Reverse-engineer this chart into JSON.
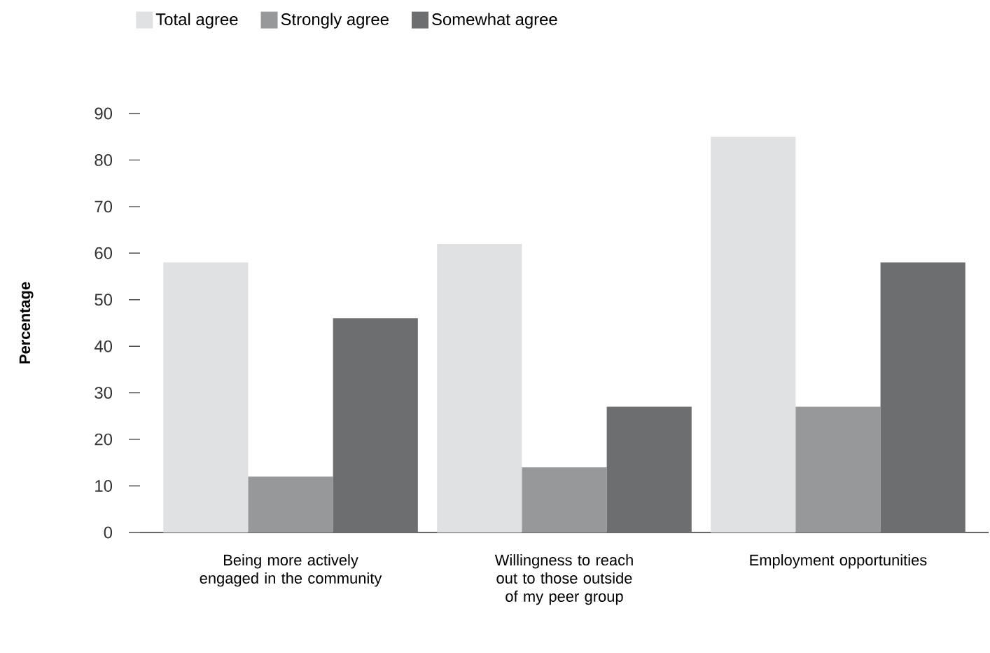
{
  "chart_data": {
    "type": "bar",
    "ylabel": "Percentage",
    "categories": [
      "Being more actively engaged in the community",
      "Willingness to reach out to those outside of my peer group",
      "Employment opportunities"
    ],
    "series": [
      {
        "name": "Total agree",
        "color": "#e0e1e2",
        "values": [
          58,
          62,
          85
        ]
      },
      {
        "name": "Strongly agree",
        "color": "#97989a",
        "values": [
          12,
          14,
          27
        ]
      },
      {
        "name": "Somewhat agree",
        "color": "#6d6e70",
        "values": [
          46,
          27,
          58
        ]
      }
    ],
    "ylim": [
      0,
      90
    ],
    "yticks": [
      0,
      10,
      20,
      30,
      40,
      50,
      60,
      70,
      80,
      90
    ],
    "grid": false,
    "legend": "top left"
  }
}
